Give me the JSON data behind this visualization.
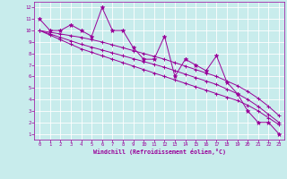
{
  "xlabel": "Windchill (Refroidissement éolien,°C)",
  "background_color": "#c8ecec",
  "line_color": "#990099",
  "grid_color": "#ffffff",
  "x_data": [
    0,
    1,
    2,
    3,
    4,
    5,
    6,
    7,
    8,
    9,
    10,
    11,
    12,
    13,
    14,
    15,
    16,
    17,
    18,
    19,
    20,
    21,
    22,
    23
  ],
  "y_zigzag": [
    11,
    10,
    10,
    10.5,
    10,
    9.5,
    12,
    10,
    10,
    8.5,
    7.5,
    7.5,
    9.5,
    6,
    7.5,
    7,
    6.5,
    7.8,
    5.5,
    4.5,
    3,
    2,
    2,
    1
  ],
  "y_line1": [
    10,
    9.85,
    9.7,
    9.55,
    9.4,
    9.2,
    9.0,
    8.75,
    8.5,
    8.25,
    8.0,
    7.75,
    7.5,
    7.2,
    6.9,
    6.6,
    6.3,
    6.0,
    5.6,
    5.2,
    4.7,
    4.1,
    3.4,
    2.6
  ],
  "y_line2": [
    10,
    9.7,
    9.4,
    9.1,
    8.8,
    8.55,
    8.3,
    8.05,
    7.8,
    7.55,
    7.3,
    7.05,
    6.8,
    6.5,
    6.2,
    5.9,
    5.6,
    5.3,
    4.9,
    4.5,
    4.0,
    3.4,
    2.7,
    2.0
  ],
  "y_line3": [
    10,
    9.6,
    9.2,
    8.8,
    8.4,
    8.1,
    7.8,
    7.5,
    7.2,
    6.9,
    6.6,
    6.3,
    6.0,
    5.7,
    5.4,
    5.1,
    4.8,
    4.5,
    4.2,
    3.9,
    3.5,
    3.0,
    2.4,
    1.8
  ],
  "xlim": [
    -0.5,
    23.5
  ],
  "ylim": [
    0.5,
    12.5
  ],
  "yticks": [
    1,
    2,
    3,
    4,
    5,
    6,
    7,
    8,
    9,
    10,
    11,
    12
  ],
  "xticks": [
    0,
    1,
    2,
    3,
    4,
    5,
    6,
    7,
    8,
    9,
    10,
    11,
    12,
    13,
    14,
    15,
    16,
    17,
    18,
    19,
    20,
    21,
    22,
    23
  ]
}
